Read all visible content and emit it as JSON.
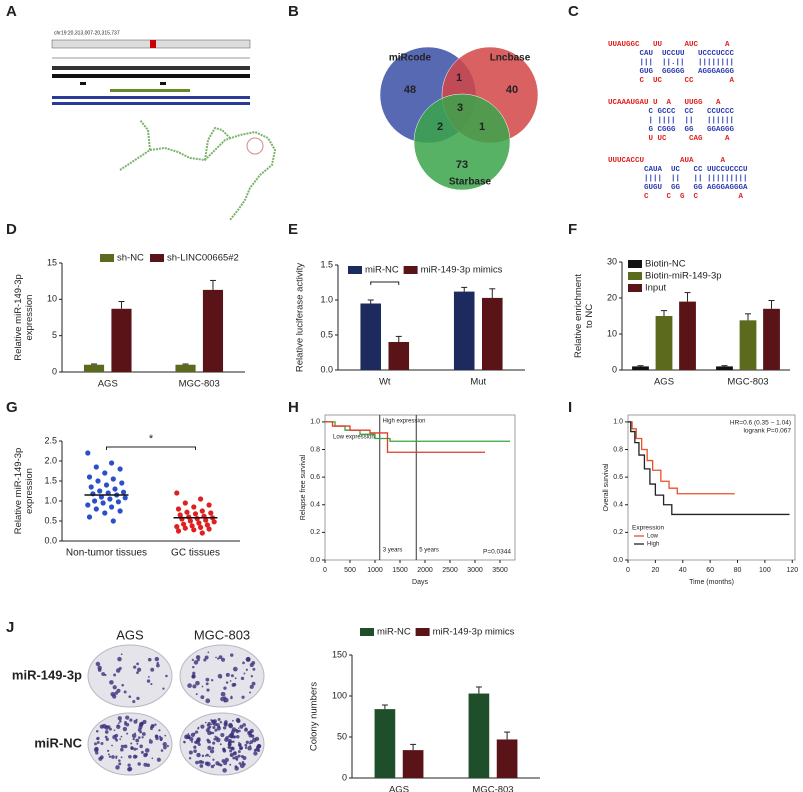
{
  "panel_labels": [
    "A",
    "B",
    "C",
    "D",
    "E",
    "F",
    "G",
    "H",
    "I",
    "J"
  ],
  "genome_browser": {
    "locus": "chr19:20,313,007-20,315,737"
  },
  "venn": {
    "sets": [
      {
        "name": "miRcode",
        "color": "#3b4fa6"
      },
      {
        "name": "Lncbase",
        "color": "#d24545"
      },
      {
        "name": "Starbase",
        "color": "#3aa54a"
      }
    ],
    "regions": [
      {
        "sets": [
          0
        ],
        "value": 48
      },
      {
        "sets": [
          1
        ],
        "value": 40
      },
      {
        "sets": [
          2
        ],
        "value": 73
      },
      {
        "sets": [
          0,
          1
        ],
        "value": 1
      },
      {
        "sets": [
          0,
          2
        ],
        "value": 2
      },
      {
        "sets": [
          1,
          2
        ],
        "value": 1
      },
      {
        "sets": [
          0,
          1,
          2
        ],
        "value": 3
      }
    ]
  },
  "rna_duplexes": [
    [
      "UUAUGGC   UU     AUC      A",
      "       CAU  UCCUU   UCCCUCCC",
      "       |||  ||.||   ||||||||",
      "       GUG  GGGGG   AGGGAGGG",
      "       C  UC     CC        A"
    ],
    [
      "UCAAAUGAU U  A   UUGG   A",
      "         C GCCC  CC   CCUCCC",
      "         | ||||  ||   ||||||",
      "         G CGGG  GG   GGAGGG",
      "         U UC     CAG     A"
    ],
    [
      "UUUCACCU        AUA      A",
      "        CAUA  UC   CC UUCCUCCCU",
      "        ||||  ||   || |||||||||",
      "        GUGU  GG   GG AGGGAGGGA",
      "        C    C  G  C         A"
    ]
  ],
  "colony_assay": {
    "columns": [
      "AGS",
      "MGC-803"
    ],
    "rows": [
      "miR-149-3p",
      "miR-NC"
    ]
  },
  "chart_data": [
    {
      "type": "bar",
      "ylabel": [
        "Relative miR-149-3p",
        "expression"
      ],
      "categories": [
        "AGS",
        "MGC-803"
      ],
      "series": [
        {
          "name": "sh-NC",
          "color": "#5c6a1e",
          "values": [
            1,
            1
          ],
          "errors": [
            0.1,
            0.1
          ]
        },
        {
          "name": "sh-LINC00665#2",
          "color": "#5a1418",
          "values": [
            8.7,
            11.3
          ],
          "errors": [
            1.0,
            1.3
          ]
        }
      ],
      "significance": [
        "*",
        "*"
      ],
      "ylim": [
        0,
        15
      ],
      "yticks": [
        0,
        5,
        10,
        15
      ]
    },
    {
      "type": "bar",
      "ylabel": "Relative luciferase activity",
      "categories": [
        "Wt",
        "Mut"
      ],
      "series": [
        {
          "name": "miR-NC",
          "color": "#1c2a5e",
          "values": [
            0.95,
            1.12
          ],
          "errors": [
            0.05,
            0.06
          ]
        },
        {
          "name": "miR-149-3p mimics",
          "color": "#5a1418",
          "values": [
            0.4,
            1.03
          ],
          "errors": [
            0.08,
            0.13
          ]
        }
      ],
      "ylim": [
        0,
        1.5
      ],
      "yticks": [
        {
          "value": 0,
          "label": "0.0"
        },
        0.5,
        {
          "value": 1,
          "label": "1.0"
        },
        1.5
      ]
    },
    {
      "type": "bar",
      "ylabel": [
        "Relative enrichment",
        "to NC"
      ],
      "categories": [
        "AGS",
        "MGC-803"
      ],
      "series": [
        {
          "name": "Biotin-NC",
          "color": "#111111",
          "values": [
            1,
            1
          ],
          "errors": [
            0.2,
            0.2
          ]
        },
        {
          "name": "Biotin-miR-149-3p",
          "color": "#5c6a1e",
          "values": [
            15,
            13.8
          ],
          "errors": [
            1.5,
            1.8
          ]
        },
        {
          "name": "Input",
          "color": "#5a1418",
          "values": [
            19,
            17
          ],
          "errors": [
            2.5,
            2.3
          ]
        }
      ],
      "ylim": [
        0,
        30
      ],
      "yticks": [
        0,
        10,
        20,
        30
      ]
    },
    {
      "type": "dot",
      "ylabel": [
        "Relative miR-149-3p",
        "expression"
      ],
      "categories": [
        "Non-tumor tissues",
        "GC tissues"
      ],
      "colors": [
        "#2a4fc8",
        "#e02020"
      ],
      "values": [
        [
          2.2,
          1.95,
          1.85,
          1.8,
          1.7,
          1.6,
          1.55,
          1.5,
          1.45,
          1.4,
          1.35,
          1.3,
          1.25,
          1.22,
          1.2,
          1.18,
          1.15,
          1.1,
          1.08,
          1.05,
          1.0,
          0.98,
          0.95,
          0.9,
          0.85,
          0.8,
          0.75,
          0.7,
          0.6,
          0.5
        ],
        [
          1.2,
          1.05,
          0.95,
          0.9,
          0.85,
          0.8,
          0.75,
          0.72,
          0.7,
          0.68,
          0.65,
          0.62,
          0.6,
          0.58,
          0.56,
          0.55,
          0.52,
          0.5,
          0.48,
          0.45,
          0.42,
          0.4,
          0.38,
          0.36,
          0.34,
          0.32,
          0.3,
          0.28,
          0.25,
          0.2
        ]
      ],
      "means": [
        1.15,
        0.58
      ],
      "significance": "*",
      "ylim": [
        0,
        2.5
      ],
      "yticks": [
        {
          "value": 0,
          "label": "0.0"
        },
        0.5,
        {
          "value": 1,
          "label": "1.0"
        },
        1.5,
        {
          "value": 2,
          "label": "2.0"
        },
        2.5
      ]
    },
    {
      "type": "survival",
      "xlabel": "Days",
      "ylabel": "Relapse free survival",
      "legend": "inline",
      "series": [
        {
          "name": "Low expression",
          "color": "#3aa53a",
          "x": [
            0,
            200,
            200,
            400,
            400,
            700,
            700,
            1000,
            1000,
            1300,
            1300,
            3700
          ],
          "values": [
            1,
            1,
            0.97,
            0.97,
            0.94,
            0.94,
            0.91,
            0.91,
            0.88,
            0.88,
            0.86,
            0.86
          ]
        },
        {
          "name": "High expression",
          "color": "#e03a2a",
          "x": [
            0,
            150,
            150,
            500,
            500,
            900,
            900,
            1250,
            1250,
            3200
          ],
          "values": [
            1,
            1,
            0.97,
            0.97,
            0.94,
            0.94,
            0.92,
            0.92,
            0.78,
            0.78
          ]
        }
      ],
      "reference_lines": [
        {
          "x": 1095,
          "label": "3 years"
        },
        {
          "x": 1825,
          "label": "5 years"
        }
      ],
      "annotations": [
        "P=0.0344"
      ],
      "annotation_position": "lower right",
      "xlim": [
        0,
        3800
      ],
      "xticks": [
        0,
        500,
        1000,
        1500,
        2000,
        2500,
        3000,
        3500
      ],
      "ylim": [
        0,
        1.05
      ],
      "yticks": [
        {
          "value": 0,
          "label": "0.0"
        },
        0.2,
        0.4,
        0.6,
        0.8,
        {
          "value": 1,
          "label": "1.0"
        }
      ]
    },
    {
      "type": "survival",
      "xlabel": "Time (months)",
      "ylabel": "Overall survival",
      "legend": "lower left",
      "legend_title": "Expression",
      "series": [
        {
          "name": "Low",
          "color": "#e8502a",
          "x": [
            0,
            3,
            3,
            6,
            6,
            10,
            10,
            14,
            14,
            18,
            18,
            24,
            24,
            30,
            30,
            36,
            36,
            78
          ],
          "values": [
            1,
            1,
            0.95,
            0.95,
            0.88,
            0.88,
            0.8,
            0.8,
            0.72,
            0.72,
            0.65,
            0.65,
            0.57,
            0.57,
            0.52,
            0.52,
            0.48,
            0.48
          ]
        },
        {
          "name": "High",
          "color": "#222222",
          "x": [
            0,
            2,
            2,
            5,
            5,
            8,
            8,
            12,
            12,
            16,
            16,
            20,
            20,
            26,
            26,
            32,
            32,
            118
          ],
          "values": [
            1,
            1,
            0.93,
            0.93,
            0.85,
            0.85,
            0.76,
            0.76,
            0.66,
            0.66,
            0.55,
            0.55,
            0.47,
            0.47,
            0.4,
            0.4,
            0.33,
            0.33
          ]
        }
      ],
      "annotations": [
        "HR=0.6 (0.35 − 1.04)",
        "logrank P=0.067"
      ],
      "annotation_position": "upper right",
      "xlim": [
        0,
        122
      ],
      "xticks": [
        0,
        20,
        40,
        60,
        80,
        100,
        120
      ],
      "ylim": [
        0,
        1.05
      ],
      "yticks": [
        {
          "value": 0,
          "label": "0.0"
        },
        0.2,
        0.4,
        0.6,
        0.8,
        {
          "value": 1,
          "label": "1.0"
        }
      ]
    },
    {
      "type": "bar",
      "ylabel": "Colony numbers",
      "categories": [
        "AGS",
        "MGC-803"
      ],
      "series": [
        {
          "name": "miR-NC",
          "color": "#1f4f2a",
          "values": [
            84,
            103
          ],
          "errors": [
            5,
            8
          ]
        },
        {
          "name": "miR-149-3p mimics",
          "color": "#5a1418",
          "values": [
            34,
            47
          ],
          "errors": [
            7,
            9
          ]
        }
      ],
      "significance": [
        "*",
        "*"
      ],
      "ylim": [
        0,
        150
      ],
      "yticks": [
        0,
        50,
        100,
        150
      ]
    }
  ]
}
